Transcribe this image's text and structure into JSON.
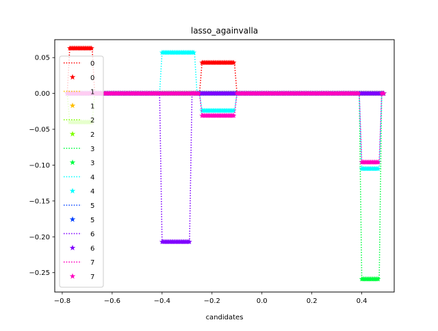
{
  "chart_data": {
    "type": "line",
    "title": "lasso_againvalla",
    "xlabel": "candidates",
    "ylabel": "",
    "xlim": [
      -0.83,
      0.53
    ],
    "ylim": [
      -0.277,
      0.075
    ],
    "grid": false,
    "legend_placement": "upper-left",
    "xticks": [
      -0.8,
      -0.6,
      -0.4,
      -0.2,
      0.0,
      0.2,
      0.4
    ],
    "xtick_labels": [
      "−0.8",
      "−0.6",
      "−0.4",
      "−0.2",
      "0.0",
      "0.2",
      "0.4"
    ],
    "yticks": [
      0.05,
      0.0,
      -0.05,
      -0.1,
      -0.15,
      -0.2,
      -0.25
    ],
    "ytick_labels": [
      "0.05",
      "0.00",
      "−0.05",
      "−0.10",
      "−0.15",
      "−0.20",
      "−0.25"
    ],
    "legend": [
      {
        "label": "0",
        "kind": "line",
        "color": "#ff0000"
      },
      {
        "label": "0",
        "kind": "marker",
        "color": "#ff0000"
      },
      {
        "label": "1",
        "kind": "line",
        "color": "#ffbf00"
      },
      {
        "label": "1",
        "kind": "marker",
        "color": "#ffbf00"
      },
      {
        "label": "2",
        "kind": "line",
        "color": "#80ff00"
      },
      {
        "label": "2",
        "kind": "marker",
        "color": "#80ff00"
      },
      {
        "label": "3",
        "kind": "line",
        "color": "#00ff40"
      },
      {
        "label": "3",
        "kind": "marker",
        "color": "#00ff40"
      },
      {
        "label": "4",
        "kind": "line",
        "color": "#00ffff"
      },
      {
        "label": "4",
        "kind": "marker",
        "color": "#00ffff"
      },
      {
        "label": "5",
        "kind": "line",
        "color": "#0040ff"
      },
      {
        "label": "5",
        "kind": "marker",
        "color": "#0040ff"
      },
      {
        "label": "6",
        "kind": "line",
        "color": "#7f00ff"
      },
      {
        "label": "6",
        "kind": "marker",
        "color": "#7f00ff"
      },
      {
        "label": "7",
        "kind": "line",
        "color": "#ff00bf"
      },
      {
        "label": "7",
        "kind": "marker",
        "color": "#ff00bf"
      }
    ],
    "series": [
      {
        "color": "#ff0000",
        "values": [
          [
            -0.78,
            0.0
          ],
          [
            -0.77,
            0.063
          ],
          [
            -0.68,
            0.063
          ],
          [
            -0.67,
            0.0
          ],
          [
            -0.25,
            0.0
          ],
          [
            -0.24,
            0.043
          ],
          [
            -0.11,
            0.043
          ],
          [
            -0.1,
            0.0
          ],
          [
            0.49,
            0.0
          ]
        ]
      },
      {
        "color": "#ffbf00",
        "values": [
          [
            -0.78,
            0.0
          ],
          [
            0.49,
            0.0
          ]
        ]
      },
      {
        "color": "#80ff00",
        "values": [
          [
            -0.78,
            0.0
          ],
          [
            -0.77,
            -0.04
          ],
          [
            -0.68,
            -0.04
          ],
          [
            -0.67,
            0.0
          ],
          [
            0.49,
            0.0
          ]
        ]
      },
      {
        "color": "#00ff40",
        "values": [
          [
            -0.78,
            0.0
          ],
          [
            0.39,
            0.0
          ],
          [
            0.4,
            -0.259
          ],
          [
            0.47,
            -0.259
          ],
          [
            0.48,
            0.0
          ],
          [
            0.49,
            0.0
          ]
        ]
      },
      {
        "color": "#00ffff",
        "values": [
          [
            -0.78,
            0.0
          ],
          [
            -0.41,
            0.0
          ],
          [
            -0.4,
            0.057
          ],
          [
            -0.27,
            0.057
          ],
          [
            -0.26,
            0.0
          ],
          [
            -0.25,
            0.0
          ],
          [
            -0.24,
            -0.024
          ],
          [
            -0.11,
            -0.024
          ],
          [
            -0.1,
            0.0
          ],
          [
            0.39,
            0.0
          ],
          [
            0.4,
            -0.105
          ],
          [
            0.47,
            -0.105
          ],
          [
            0.48,
            0.0
          ],
          [
            0.49,
            0.0
          ]
        ]
      },
      {
        "color": "#0040ff",
        "values": [
          [
            -0.78,
            0.0
          ],
          [
            0.49,
            0.0
          ]
        ]
      },
      {
        "color": "#7f00ff",
        "values": [
          [
            -0.78,
            0.0
          ],
          [
            -0.41,
            0.0
          ],
          [
            -0.4,
            -0.207
          ],
          [
            -0.29,
            -0.207
          ],
          [
            -0.28,
            0.0
          ],
          [
            0.49,
            0.0
          ]
        ]
      },
      {
        "color": "#ff00bf",
        "values": [
          [
            -0.78,
            0.0
          ],
          [
            -0.25,
            0.0
          ],
          [
            -0.24,
            -0.031
          ],
          [
            -0.11,
            -0.031
          ],
          [
            -0.1,
            0.0
          ],
          [
            0.39,
            0.0
          ],
          [
            0.4,
            -0.096
          ],
          [
            0.47,
            -0.096
          ],
          [
            0.48,
            0.0
          ],
          [
            0.49,
            0.0
          ]
        ]
      }
    ]
  }
}
